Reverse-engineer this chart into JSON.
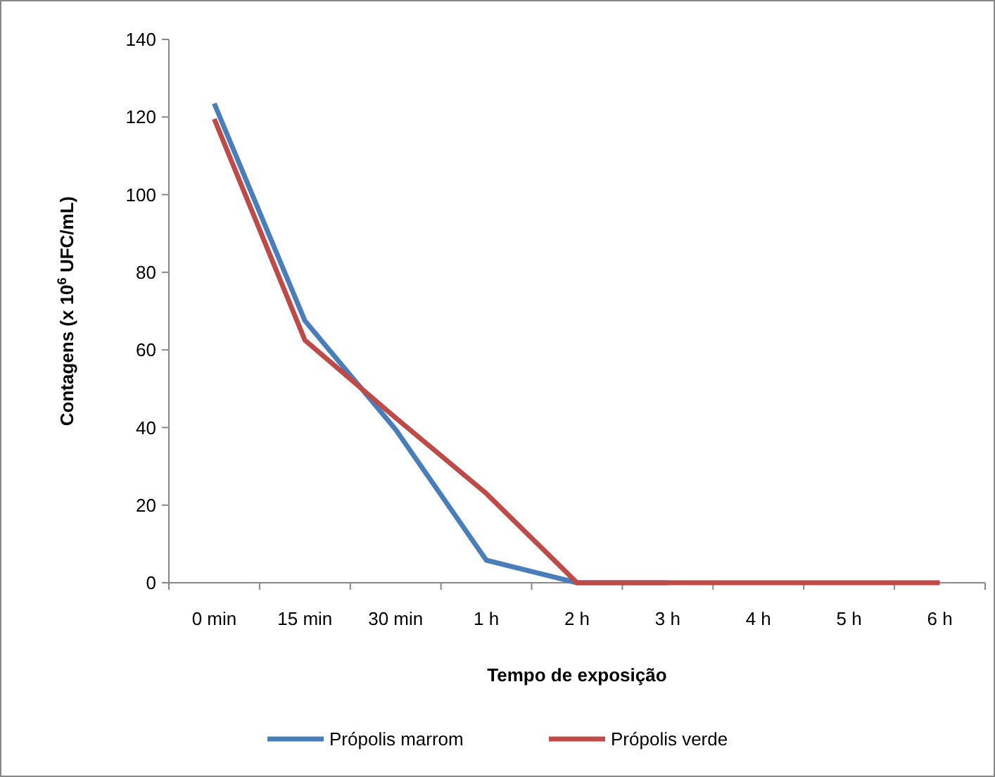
{
  "chart_data": {
    "type": "line",
    "xlabel": "Tempo de exposição",
    "ylabel": "Contagens (x 10$^{6}$ UFC/mL)",
    "categories": [
      "0 min",
      "15 min",
      "30 min",
      "1 h",
      "2 h",
      "3 h",
      "4 h",
      "5 h",
      "6 h"
    ],
    "series": [
      {
        "name": "Própolis marrom",
        "color": "#4a7ebb",
        "values": [
          123.5,
          67.5,
          39.5,
          5.8,
          0,
          0,
          null,
          null,
          null
        ]
      },
      {
        "name": "Própolis verde",
        "color": "#be4b48",
        "values": [
          119.5,
          62.5,
          42.5,
          23,
          0,
          0,
          0,
          0,
          0
        ]
      }
    ],
    "ylim": [
      0,
      140
    ],
    "yticks": [
      0,
      20,
      40,
      60,
      80,
      100,
      120,
      140
    ],
    "grid": false,
    "legend": "bottom",
    "marker": "none",
    "line_style": "solid"
  }
}
